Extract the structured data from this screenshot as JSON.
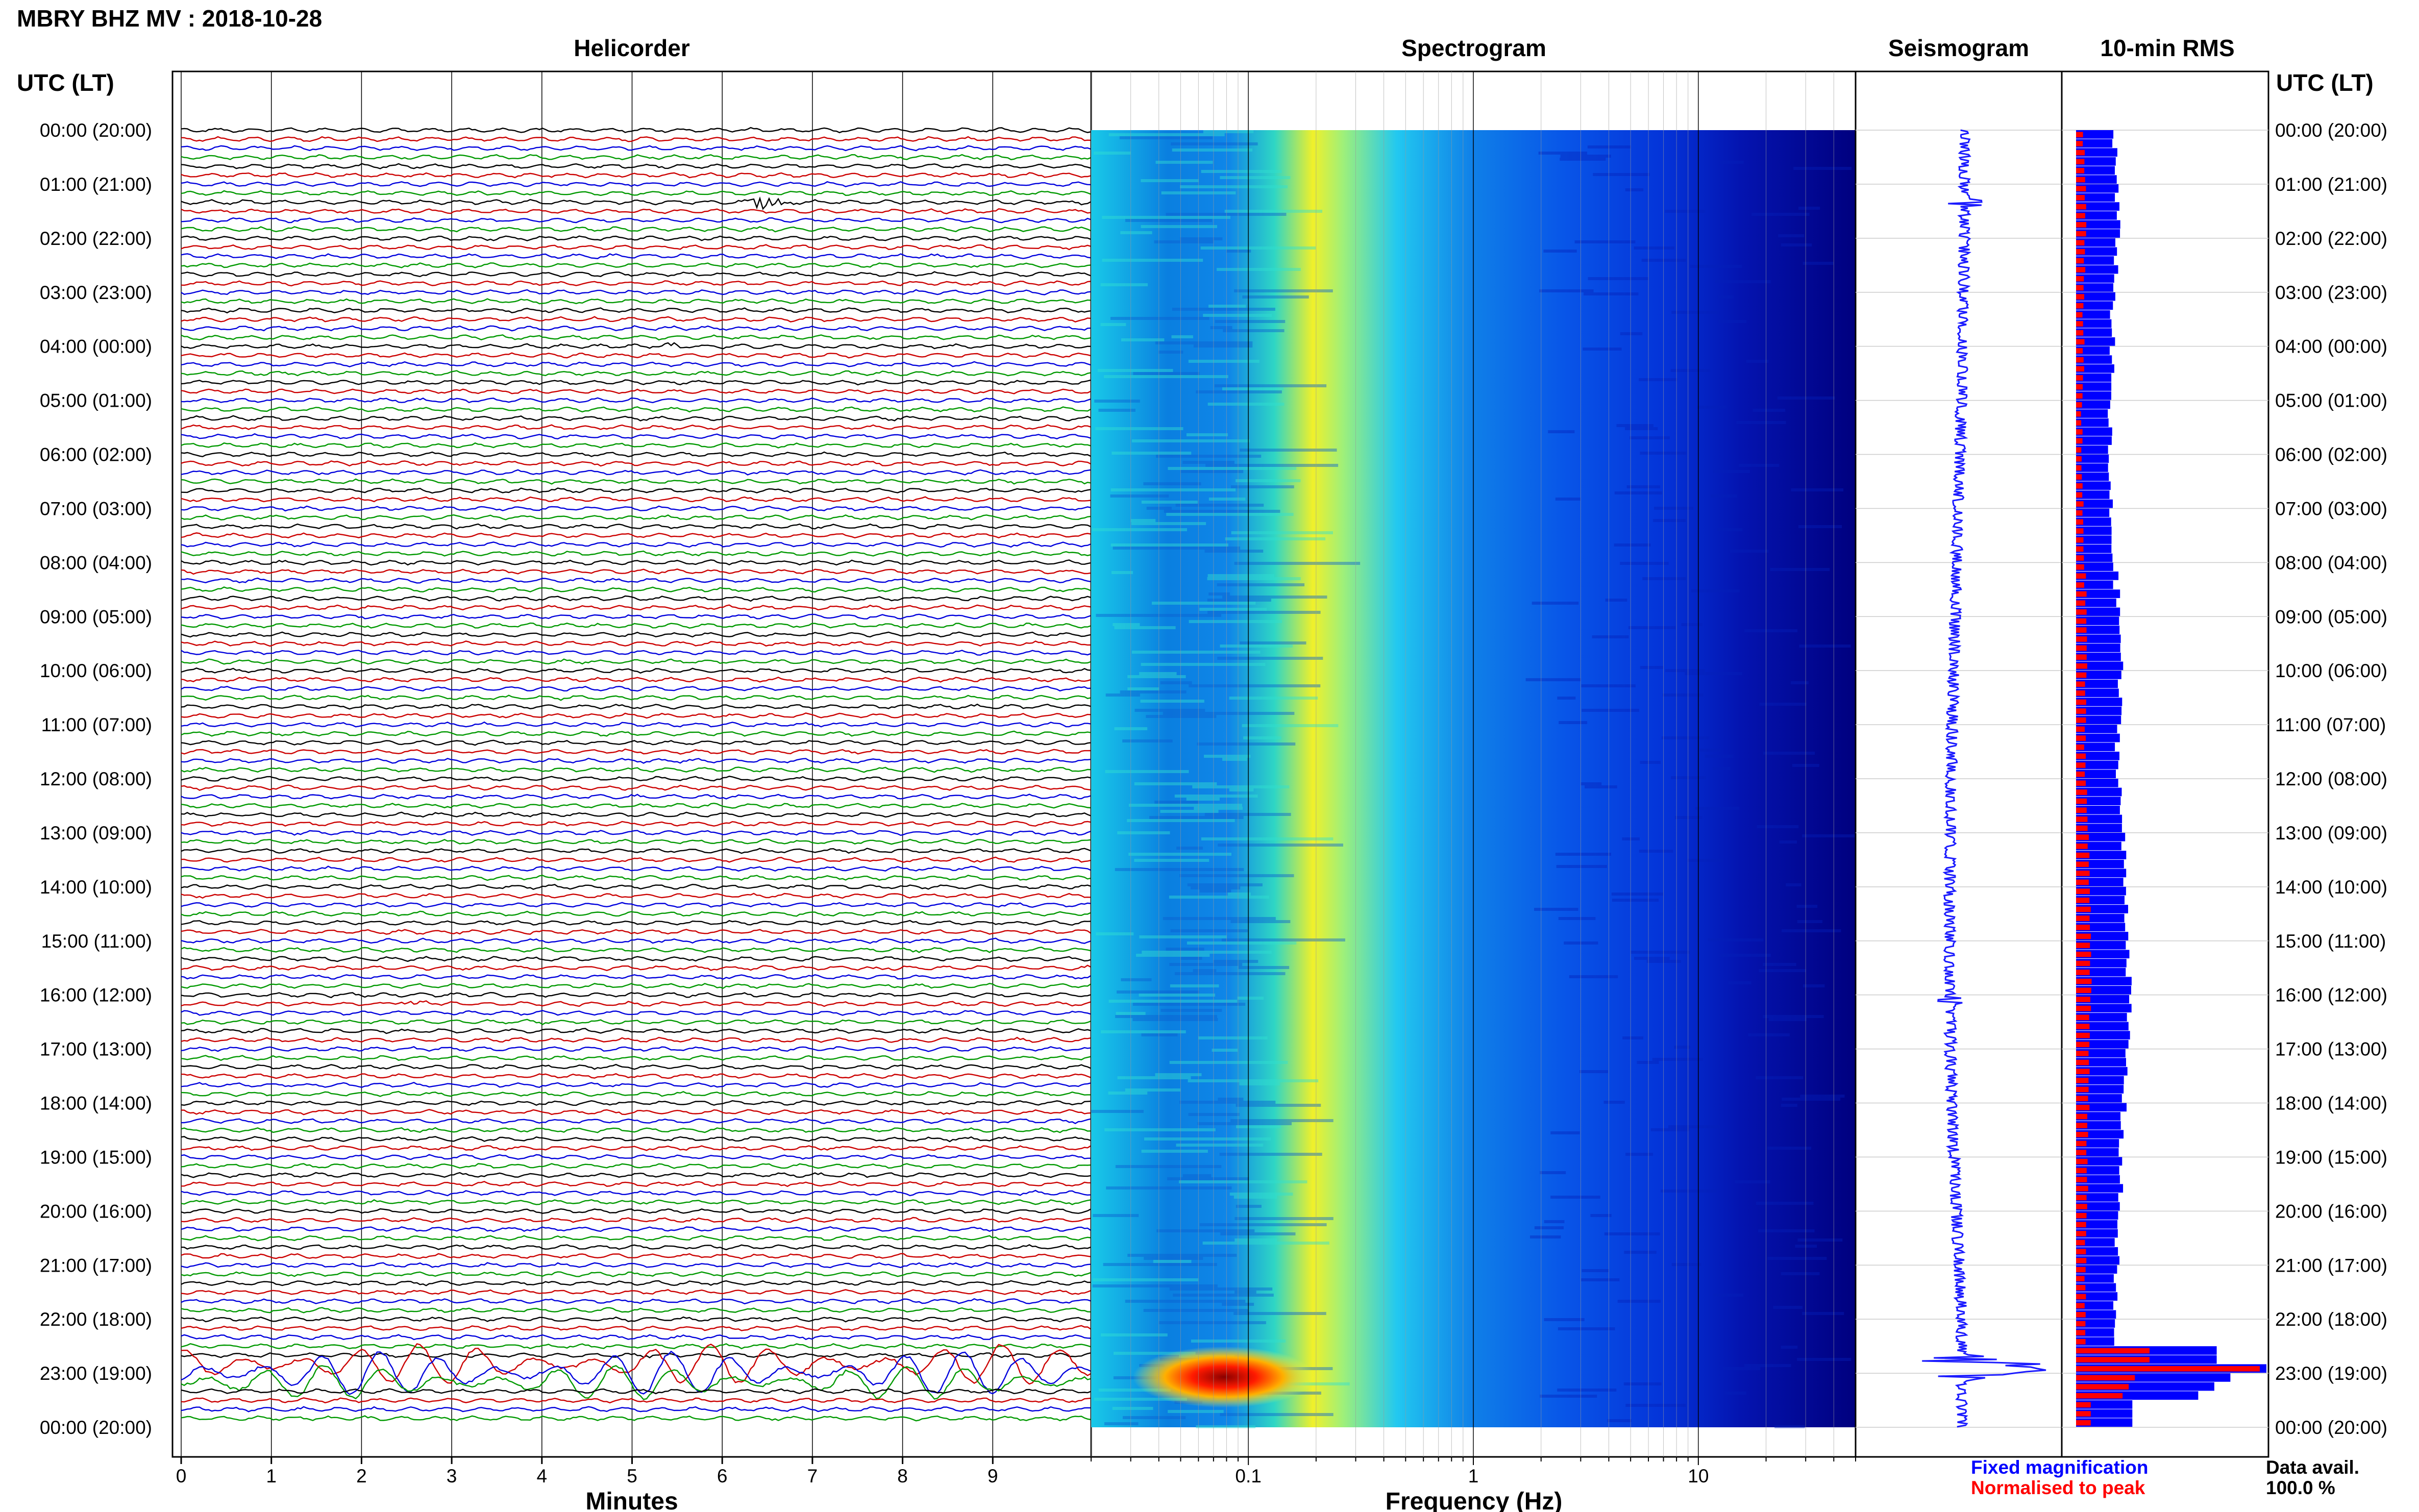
{
  "title": "MBRY BHZ MV : 2018-10-28",
  "panels": {
    "helicorder": "Helicorder",
    "spectrogram": "Spectrogram",
    "seismogram": "Seismogram",
    "rms": "10-min RMS"
  },
  "time_axis_label": "UTC (LT)",
  "time_labels": [
    "00:00 (20:00)",
    "01:00 (21:00)",
    "02:00 (22:00)",
    "03:00 (23:00)",
    "04:00 (00:00)",
    "05:00 (01:00)",
    "06:00 (02:00)",
    "07:00 (03:00)",
    "08:00 (04:00)",
    "09:00 (05:00)",
    "10:00 (06:00)",
    "11:00 (07:00)",
    "12:00 (08:00)",
    "13:00 (09:00)",
    "14:00 (10:00)",
    "15:00 (11:00)",
    "16:00 (12:00)",
    "17:00 (13:00)",
    "18:00 (14:00)",
    "19:00 (15:00)",
    "20:00 (16:00)",
    "21:00 (17:00)",
    "22:00 (18:00)",
    "23:00 (19:00)",
    "00:00 (20:00)"
  ],
  "legend": {
    "fixed": "Fixed magnification",
    "normalised": "Normalised to peak",
    "data_avail_label": "Data avail.",
    "data_avail_value": "100.0 %"
  },
  "colors": {
    "trace_cycle": [
      "#000000",
      "#cc0000",
      "#0000dd",
      "#009900"
    ],
    "seismogram": "#1a1aff",
    "rms_fixed": "#0000ff",
    "rms_normalised": "#ff0000",
    "grid": "#cccccc"
  },
  "chart_data": [
    {
      "type": "line",
      "name": "helicorder",
      "xlabel": "Minutes",
      "xticks": [
        0,
        1,
        2,
        3,
        4,
        5,
        6,
        7,
        8,
        9
      ],
      "xlim": [
        0,
        10
      ],
      "ylim": [
        0,
        24
      ],
      "trace_interval_min": 10,
      "trace_colors": [
        "#000000",
        "#cc0000",
        "#0000dd",
        "#009900"
      ],
      "events": [
        {
          "hour": 1.3,
          "minute": 6.5,
          "amplitude": "large"
        },
        {
          "hour": 16.1,
          "minute": 2.6,
          "amplitude": "medium"
        },
        {
          "hour": 15.5,
          "minute": 7.8,
          "amplitude": "small"
        },
        {
          "hour": 4.0,
          "minute": 5.4,
          "amplitude": "small"
        }
      ],
      "large_signal_window_hours": [
        22.7,
        23.3
      ]
    },
    {
      "type": "heatmap",
      "name": "spectrogram",
      "xlabel": "Frequency (Hz)",
      "xscale": "log",
      "xlim": [
        0.02,
        50
      ],
      "xticks": [
        0.1,
        1,
        10
      ],
      "xtick_labels": [
        "0.1",
        "1",
        "10"
      ],
      "ylim": [
        0,
        24
      ],
      "colormap": [
        "#00007f",
        "#0000ff",
        "#0080ff",
        "#00ffff",
        "#80ff80",
        "#ffff00",
        "#ff8000",
        "#ff0000",
        "#7f0000"
      ],
      "peak_band_hz": [
        0.2,
        0.3
      ],
      "event_hour": 22.9,
      "event_freq_hz": [
        0.05,
        0.15
      ]
    },
    {
      "type": "line",
      "name": "seismogram",
      "ylim": [
        0,
        24
      ],
      "event_hour": 22.9
    },
    {
      "type": "bar",
      "name": "10-min RMS",
      "ylim": [
        0,
        24
      ],
      "bin_minutes": 10,
      "series": [
        {
          "name": "Fixed magnification",
          "relative_levels": [
            0.24,
            0.25,
            0.26,
            0.23,
            0.22,
            0.21,
            0.2,
            0.22,
            0.25,
            0.28,
            0.27,
            0.26,
            0.28,
            0.3,
            0.32,
            0.33,
            0.32,
            0.3,
            0.28,
            0.27,
            0.25,
            0.24,
            0.22,
            0.2,
            2.5,
            0.6,
            0.35
          ]
        },
        {
          "name": "Normalised to peak",
          "relative_levels": [
            0.04,
            0.05,
            0.05,
            0.04,
            0.04,
            0.03,
            0.03,
            0.04,
            0.05,
            0.06,
            0.05,
            0.05,
            0.06,
            0.07,
            0.08,
            0.08,
            0.07,
            0.07,
            0.06,
            0.06,
            0.05,
            0.05,
            0.05,
            0.04,
            1.0,
            0.2,
            0.08
          ]
        }
      ]
    }
  ]
}
